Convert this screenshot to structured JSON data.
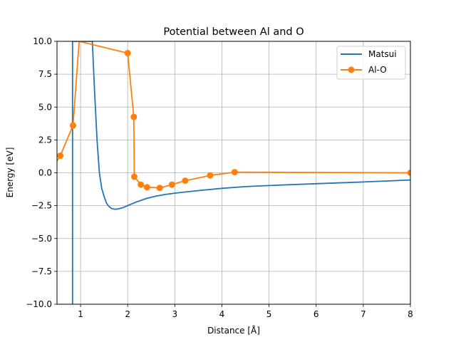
{
  "chart_data": {
    "type": "line",
    "title": "Potential between Al and O",
    "xlabel": "Distance [Å]",
    "ylabel": "Energy [eV]",
    "xlim": [
      0.5,
      8
    ],
    "ylim": [
      -10,
      10
    ],
    "xticks": [
      1,
      2,
      3,
      4,
      5,
      6,
      7,
      8
    ],
    "yticks": [
      -10.0,
      -7.5,
      -5.0,
      -2.5,
      0.0,
      2.5,
      5.0,
      7.5,
      10.0
    ],
    "ytick_labels": [
      "−10.0",
      "−7.5",
      "−5.0",
      "−2.5",
      "0.0",
      "2.5",
      "5.0",
      "7.5",
      "10.0"
    ],
    "grid": true,
    "legend": "top-right",
    "series": [
      {
        "name": "Matsui",
        "color": "#1f77b4",
        "marker": "none",
        "x": [
          0.83,
          0.83,
          0.83,
          1.1,
          1.25,
          1.3,
          1.35,
          1.4,
          1.45,
          1.5,
          1.55,
          1.6,
          1.65,
          1.7,
          1.75,
          1.8,
          1.9,
          2.0,
          2.2,
          2.4,
          2.6,
          2.8,
          3.0,
          3.3,
          3.6,
          4.0,
          4.5,
          5.0,
          6.0,
          7.0,
          8.0
        ],
        "y": [
          -10.0,
          3.5,
          10.0,
          10.0,
          10.0,
          6.0,
          2.5,
          0.0,
          -1.2,
          -1.8,
          -2.3,
          -2.55,
          -2.7,
          -2.76,
          -2.77,
          -2.75,
          -2.65,
          -2.5,
          -2.2,
          -1.95,
          -1.78,
          -1.65,
          -1.55,
          -1.43,
          -1.32,
          -1.18,
          -1.05,
          -0.97,
          -0.83,
          -0.7,
          -0.55
        ]
      },
      {
        "name": "Al-O",
        "color": "#ff7f0e",
        "marker": "circle",
        "x": [
          0.5,
          0.57,
          0.84,
          0.97,
          2.0,
          2.13,
          2.14,
          2.28,
          2.41,
          2.68,
          2.94,
          3.22,
          3.75,
          4.27,
          8.0
        ],
        "y": [
          0.9,
          1.3,
          3.6,
          10.0,
          9.1,
          4.25,
          -0.3,
          -0.9,
          -1.1,
          -1.15,
          -0.9,
          -0.6,
          -0.2,
          0.05,
          0.0
        ],
        "marked": [
          false,
          true,
          true,
          false,
          true,
          true,
          true,
          true,
          true,
          true,
          true,
          true,
          true,
          true,
          true
        ]
      }
    ]
  }
}
